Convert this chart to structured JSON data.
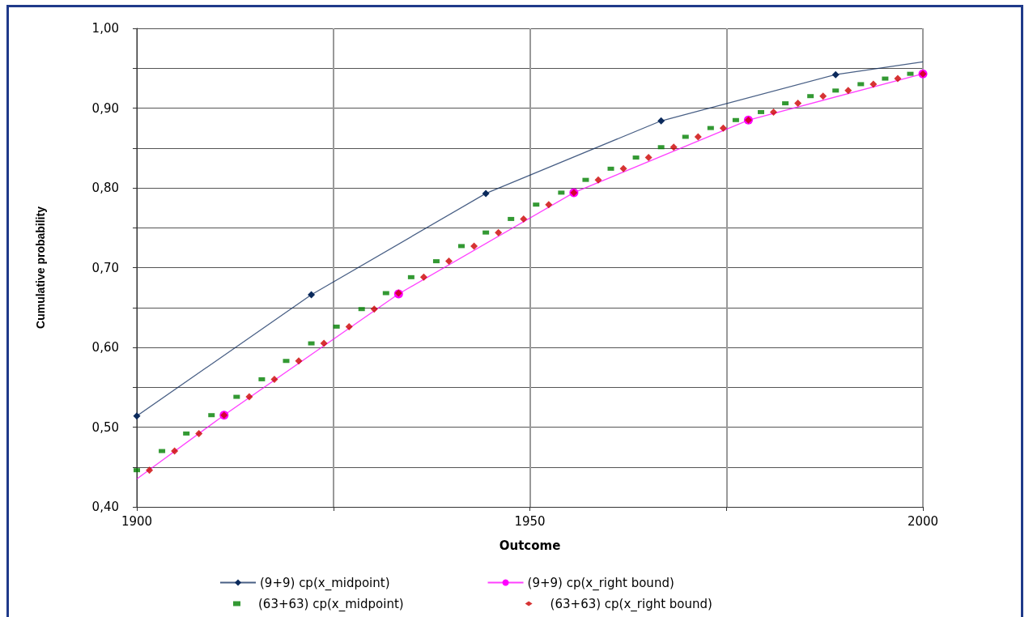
{
  "chart_data": {
    "type": "line",
    "xlabel": "Outcome",
    "ylabel": "Cumulative probability",
    "xlim": [
      1900,
      2000
    ],
    "xticks": [
      1900,
      {
        "value": 1925,
        "label": null
      },
      1950,
      {
        "value": 1975,
        "label": null
      },
      2000
    ],
    "ylim": [
      0.4,
      1.0
    ],
    "yticks": [
      {
        "value": 0.4,
        "label": "0,40"
      },
      {
        "value": 0.45,
        "label": null
      },
      {
        "value": 0.5,
        "label": "0,50"
      },
      {
        "value": 0.55,
        "label": null
      },
      {
        "value": 0.6,
        "label": "0,60"
      },
      {
        "value": 0.65,
        "label": null
      },
      {
        "value": 0.7,
        "label": "0,70"
      },
      {
        "value": 0.75,
        "label": null
      },
      {
        "value": 0.8,
        "label": "0,80"
      },
      {
        "value": 0.85,
        "label": null
      },
      {
        "value": 0.9,
        "label": "0,90"
      },
      {
        "value": 0.95,
        "label": null
      },
      {
        "value": 1.0,
        "label": "1,00"
      }
    ],
    "grid": true,
    "legend": "bottom",
    "series": [
      {
        "name": "(9+9) cp(x_midpoint)",
        "marker": "diamond",
        "color": "#0b2a5c",
        "x": [
          1900,
          1922.2,
          1944.4,
          1966.7,
          1988.9
        ],
        "values": [
          0.514,
          0.666,
          0.793,
          0.884,
          0.942
        ]
      },
      {
        "name": "(9+9) cp(x_right bound)",
        "marker": "circle",
        "color": "#ff00ff",
        "x": [
          1911.1,
          1933.3,
          1955.6,
          1977.8,
          2000
        ],
        "values": [
          0.515,
          0.667,
          0.794,
          0.885,
          0.943
        ]
      },
      {
        "name": "(63+63) cp(x_midpoint)",
        "type": "scatter",
        "marker": "square",
        "color": "#008000",
        "x": [
          1900.0,
          1903.2,
          1906.3,
          1909.5,
          1912.7,
          1915.9,
          1919.0,
          1922.2,
          1925.4,
          1928.6,
          1931.7,
          1934.9,
          1938.1,
          1941.3,
          1944.4,
          1947.6,
          1950.8,
          1954.0,
          1957.1,
          1960.3,
          1963.5,
          1966.7,
          1969.8,
          1973.0,
          1976.2,
          1979.4,
          1982.5,
          1985.7,
          1988.9,
          1992.1,
          1995.2,
          1998.4
        ],
        "values": [
          0.446,
          0.47,
          0.492,
          0.515,
          0.538,
          0.56,
          0.583,
          0.605,
          0.626,
          0.648,
          0.668,
          0.688,
          0.708,
          0.727,
          0.744,
          0.761,
          0.779,
          0.794,
          0.81,
          0.824,
          0.838,
          0.851,
          0.864,
          0.875,
          0.885,
          0.895,
          0.906,
          0.915,
          0.922,
          0.93,
          0.937,
          0.943
        ]
      },
      {
        "name": "(63+63) cp(x_right bound)",
        "type": "scatter",
        "marker": "diamond",
        "color": "#cc0000",
        "x": [
          1901.6,
          1904.8,
          1907.9,
          1911.1,
          1914.3,
          1917.5,
          1920.6,
          1923.8,
          1927.0,
          1930.2,
          1933.3,
          1936.5,
          1939.7,
          1942.9,
          1946.0,
          1949.2,
          1952.4,
          1955.6,
          1958.7,
          1961.9,
          1965.1,
          1968.3,
          1971.4,
          1974.6,
          1977.8,
          1981.0,
          1984.1,
          1987.3,
          1990.5,
          1993.7,
          1996.8,
          2000.0
        ],
        "values": [
          0.446,
          0.47,
          0.492,
          0.515,
          0.538,
          0.56,
          0.583,
          0.605,
          0.626,
          0.648,
          0.668,
          0.688,
          0.708,
          0.727,
          0.744,
          0.761,
          0.779,
          0.794,
          0.81,
          0.824,
          0.838,
          0.851,
          0.864,
          0.875,
          0.885,
          0.895,
          0.906,
          0.915,
          0.922,
          0.93,
          0.937,
          0.943
        ]
      },
      {
        "marker": "none",
        "color": "#0b2a5c",
        "x": [
          1988.9,
          2000
        ],
        "values": [
          0.942,
          0.958
        ]
      },
      {
        "marker": "none",
        "color": "#ff00ff",
        "x": [
          1900,
          1911.1
        ],
        "values": [
          0.435,
          0.515
        ]
      }
    ]
  }
}
